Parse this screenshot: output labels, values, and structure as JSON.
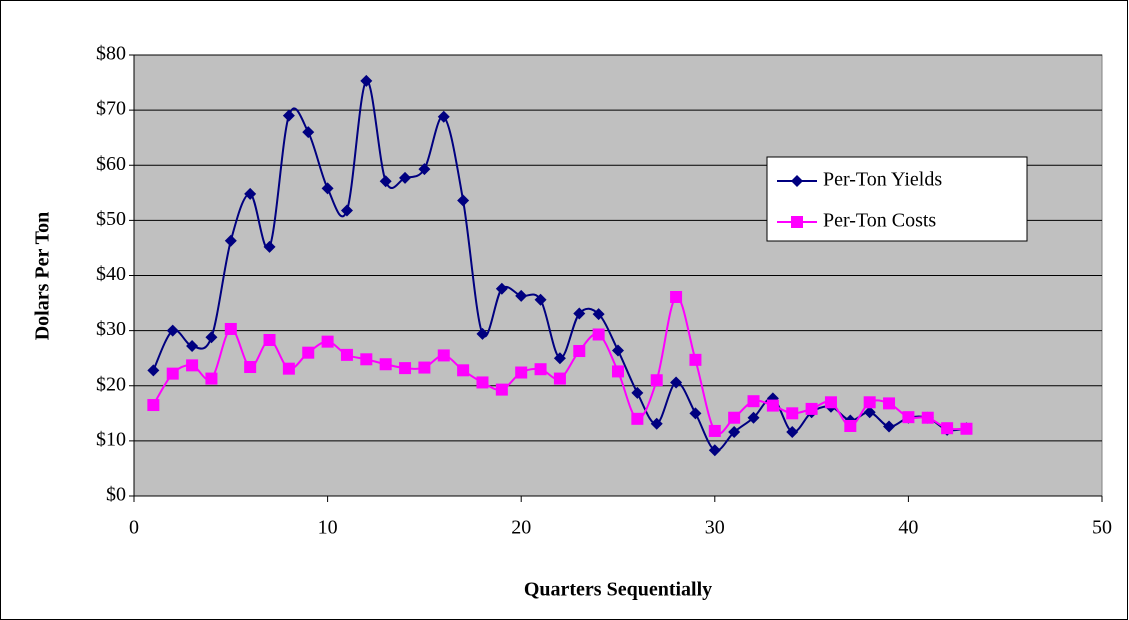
{
  "chart_data": {
    "type": "line",
    "x": [
      1,
      2,
      3,
      4,
      5,
      6,
      7,
      8,
      9,
      10,
      11,
      12,
      13,
      14,
      15,
      16,
      17,
      18,
      19,
      20,
      21,
      22,
      23,
      24,
      25,
      26,
      27,
      28,
      29,
      30,
      31,
      32,
      33,
      34,
      35,
      36,
      37,
      38,
      39,
      40,
      41,
      42,
      43
    ],
    "series": [
      {
        "name": "Per-Ton Yields",
        "color": "#000080",
        "marker": "diamond",
        "values": [
          22.8,
          30,
          27.2,
          28.8,
          46.3,
          54.8,
          45.2,
          69,
          66,
          55.8,
          51.8,
          75.3,
          57.1,
          57.7,
          59.3,
          68.8,
          53.6,
          29.4,
          37.6,
          36.3,
          35.6,
          25,
          33.1,
          33,
          26.4,
          18.7,
          13.1,
          20.6,
          15,
          8.3,
          11.6,
          14.2,
          17.7,
          11.6,
          15.2,
          16.2,
          13.7,
          15.2,
          12.6,
          14.2,
          14.2,
          12,
          12.3
        ]
      },
      {
        "name": "Per-Ton Costs",
        "color": "#FF00FF",
        "marker": "square",
        "values": [
          16.5,
          22.2,
          23.7,
          21.3,
          30.3,
          23.4,
          28.3,
          23.1,
          26,
          28,
          25.6,
          24.8,
          23.9,
          23.2,
          23.3,
          25.5,
          22.8,
          20.6,
          19.3,
          22.4,
          23,
          21.3,
          26.3,
          29.3,
          22.6,
          14,
          21,
          36.1,
          24.7,
          11.8,
          14.2,
          17.2,
          16.4,
          15,
          15.8,
          17,
          12.7,
          17,
          16.8,
          14.3,
          14.2,
          12.3,
          12.2
        ]
      }
    ],
    "xlabel": "Quarters Sequentially",
    "ylabel": "Dolars Per Ton",
    "xlim": [
      0,
      50
    ],
    "xticks": [
      0,
      10,
      20,
      30,
      40,
      50
    ],
    "ylim": [
      0,
      80
    ],
    "yticks": [
      {
        "value": 0,
        "label": "$0"
      },
      {
        "value": 10,
        "label": "$10"
      },
      {
        "value": 20,
        "label": "$20"
      },
      {
        "value": 30,
        "label": "$30"
      },
      {
        "value": 40,
        "label": "$40"
      },
      {
        "value": 50,
        "label": "$50"
      },
      {
        "value": 60,
        "label": "$60"
      },
      {
        "value": 70,
        "label": "$70"
      },
      {
        "value": 80,
        "label": "$80"
      }
    ],
    "grid": true,
    "smooth": true,
    "plot_background": "#C0C0C0"
  }
}
